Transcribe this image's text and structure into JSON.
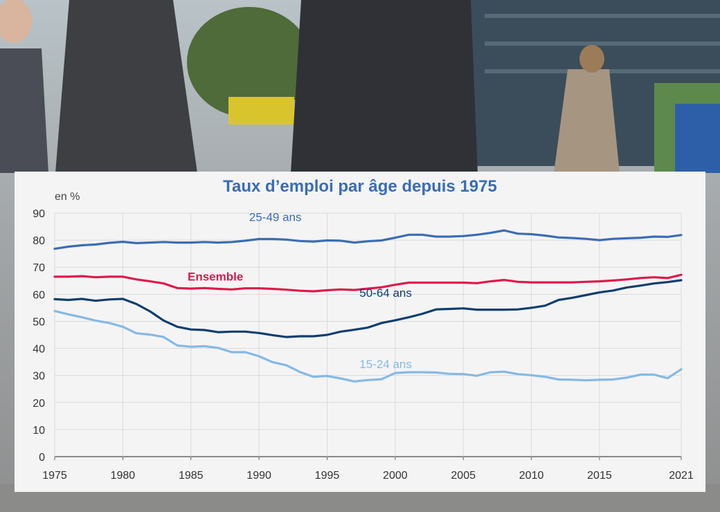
{
  "chart_data": {
    "type": "line",
    "title": "Taux d’emploi par âge depuis 1975",
    "ylabel": "en %",
    "ylim": [
      0,
      90
    ],
    "xlim": [
      1975,
      2021
    ],
    "yticks": [
      0,
      10,
      20,
      30,
      40,
      50,
      60,
      70,
      80,
      90
    ],
    "xticks": [
      1975,
      1980,
      1985,
      1990,
      1995,
      2000,
      2005,
      2010,
      2015,
      2021
    ],
    "grid": true,
    "x": [
      1975,
      1976,
      1977,
      1978,
      1979,
      1980,
      1981,
      1982,
      1983,
      1984,
      1985,
      1986,
      1987,
      1988,
      1989,
      1990,
      1991,
      1992,
      1993,
      1994,
      1995,
      1996,
      1997,
      1998,
      1999,
      2000,
      2001,
      2002,
      2003,
      2004,
      2005,
      2006,
      2007,
      2008,
      2009,
      2010,
      2011,
      2012,
      2013,
      2014,
      2015,
      2016,
      2017,
      2018,
      2019,
      2020,
      2021
    ],
    "series": [
      {
        "name": "25-49 ans",
        "color": "#3a6db3",
        "label_color": "#3a6db3",
        "label_bold": false,
        "values": [
          76.8,
          77.6,
          78.1,
          78.4,
          79.0,
          79.4,
          78.9,
          79.1,
          79.3,
          79.1,
          79.1,
          79.3,
          79.1,
          79.3,
          79.8,
          80.4,
          80.4,
          80.2,
          79.7,
          79.5,
          79.9,
          79.8,
          79.1,
          79.6,
          79.9,
          80.9,
          82.0,
          82.0,
          81.3,
          81.3,
          81.5,
          82.0,
          82.7,
          83.6,
          82.4,
          82.2,
          81.7,
          81.0,
          80.8,
          80.5,
          80.0,
          80.5,
          80.7,
          80.9,
          81.3,
          81.2,
          81.9
        ]
      },
      {
        "name": "Ensemble",
        "color": "#de1a4a",
        "label_color": "#d81b47",
        "label_bold": true,
        "values": [
          66.5,
          66.5,
          66.7,
          66.3,
          66.5,
          66.5,
          65.5,
          64.8,
          64.0,
          62.3,
          62.1,
          62.3,
          62.0,
          61.8,
          62.2,
          62.2,
          62.0,
          61.7,
          61.3,
          61.1,
          61.5,
          61.8,
          61.6,
          62.1,
          62.6,
          63.5,
          64.3,
          64.3,
          64.3,
          64.3,
          64.3,
          64.1,
          64.8,
          65.3,
          64.6,
          64.4,
          64.4,
          64.4,
          64.4,
          64.6,
          64.8,
          65.1,
          65.5,
          66.0,
          66.3,
          66.0,
          67.2
        ]
      },
      {
        "name": "50-64 ans",
        "color": "#0f3e6e",
        "label_color": "#0f3e6e",
        "label_bold": false,
        "values": [
          58.2,
          57.9,
          58.3,
          57.6,
          58.1,
          58.3,
          56.4,
          53.7,
          50.3,
          48.0,
          47.0,
          46.8,
          46.0,
          46.2,
          46.2,
          45.7,
          44.9,
          44.2,
          44.5,
          44.5,
          45.0,
          46.2,
          46.9,
          47.7,
          49.4,
          50.4,
          51.5,
          52.8,
          54.4,
          54.6,
          54.8,
          54.3,
          54.3,
          54.3,
          54.4,
          55.0,
          55.8,
          57.9,
          58.7,
          59.7,
          60.7,
          61.4,
          62.5,
          63.2,
          64.0,
          64.5,
          65.2
        ]
      },
      {
        "name": "15-24 ans",
        "color": "#86b9e3",
        "label_color": "#86b9e3",
        "label_bold": false,
        "values": [
          53.8,
          52.6,
          51.5,
          50.3,
          49.4,
          48.0,
          45.6,
          45.1,
          44.2,
          41.1,
          40.6,
          40.8,
          40.2,
          38.6,
          38.6,
          37.1,
          34.9,
          33.8,
          31.3,
          29.5,
          29.8,
          28.9,
          27.8,
          28.3,
          28.6,
          30.9,
          31.2,
          31.2,
          31.1,
          30.6,
          30.5,
          29.9,
          31.2,
          31.4,
          30.5,
          30.1,
          29.5,
          28.5,
          28.4,
          28.2,
          28.4,
          28.5,
          29.2,
          30.3,
          30.3,
          29.0,
          32.3
        ]
      }
    ]
  }
}
